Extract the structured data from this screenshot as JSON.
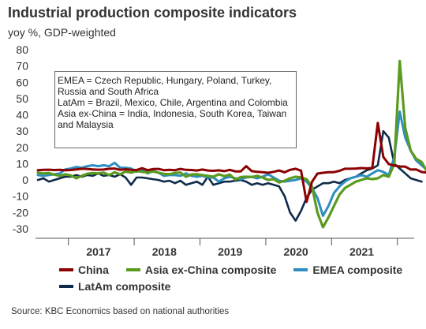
{
  "title": "Industrial production composite indicators",
  "subtitle": "yoy %, GDP-weighted",
  "note_lines": [
    "EMEA = Czech Republic, Hungary, Poland, Turkey, Russia and South Africa",
    "LatAm = Brazil, Mexico, Chile, Argentina and Colombia",
    "Asia ex-China = India, Indonesia, South Korea, Taiwan and Malaysia"
  ],
  "source": "Source: KBC Economics based on national authorities",
  "chart_data": {
    "type": "line",
    "title": "Industrial production composite indicators",
    "subtitle": "yoy %, GDP-weighted",
    "x_unit": "month",
    "x_start": "2016-07",
    "x_tick_labels": [
      "2017",
      "2018",
      "2019",
      "2020",
      "2021"
    ],
    "ylim": [
      -30,
      80
    ],
    "y_ticks": [
      -30,
      -20,
      -10,
      0,
      10,
      20,
      30,
      40,
      50,
      60,
      70,
      80
    ],
    "grid": false,
    "legend_position": "bottom",
    "colors": {
      "China": "#8b0000",
      "Asia ex-China composite": "#5a9a1f",
      "EMEA composite": "#2e8ec0",
      "LatAm composite": "#0f2a4a"
    },
    "series": [
      {
        "name": "China",
        "values": [
          6,
          6.2,
          6.3,
          6.1,
          6.2,
          6,
          6.1,
          6.5,
          6.9,
          6.8,
          6.5,
          6.3,
          6.4,
          6.9,
          7,
          6.2,
          6.6,
          6.2,
          6.1,
          7.2,
          6,
          6.7,
          6.8,
          6,
          6.2,
          6,
          6.8,
          6.2,
          6.1,
          5.8,
          6.4,
          5.8,
          5.6,
          5.9,
          5.4,
          6.2,
          5.3,
          5.3,
          8.5,
          5.4,
          5,
          4.8,
          4.4,
          5,
          5.8,
          4.7,
          6.2,
          6.9,
          5.7,
          -13.5,
          -1.1,
          3.9,
          4.4,
          4.8,
          4.8,
          5.6,
          6.9,
          6.9,
          7,
          7.3,
          7.1,
          7.3,
          35.1,
          14.1,
          9.8,
          8.8,
          8.3,
          8.2,
          6.4,
          6.5,
          4.9,
          4.5,
          4.2
        ]
      },
      {
        "name": "Asia ex-China composite",
        "values": [
          4.5,
          4,
          4.2,
          3.3,
          2.5,
          3.5,
          2.8,
          1,
          2.5,
          3.8,
          4.2,
          4,
          4.5,
          3,
          4.7,
          3.5,
          5.2,
          4.5,
          5.5,
          5,
          4.6,
          5.2,
          4.5,
          3.7,
          3.5,
          4.3,
          4.6,
          2,
          3.4,
          3.5,
          3,
          2.5,
          2,
          3.5,
          2.3,
          3.3,
          0.2,
          1.8,
          2,
          1.8,
          2.5,
          1.5,
          0,
          0.5,
          -1.5,
          -0.5,
          1,
          2,
          1.5,
          0.5,
          -4,
          -20,
          -29,
          -23,
          -16,
          -9,
          -5,
          -3,
          -1,
          0,
          1,
          0.5,
          1,
          3,
          2,
          10,
          73,
          32,
          18,
          13,
          11,
          5,
          4
        ]
      },
      {
        "name": "EMEA composite",
        "values": [
          3,
          2.5,
          3,
          3.5,
          4,
          6.5,
          7,
          8,
          7.5,
          8.5,
          9,
          8.5,
          9,
          8.5,
          10.5,
          7.5,
          7.5,
          7,
          5,
          6.5,
          4,
          5.5,
          4.5,
          2.5,
          3,
          3,
          2.5,
          4,
          2.5,
          2,
          2.5,
          1.5,
          1.5,
          -1,
          1,
          2,
          1,
          0.5,
          1.5,
          2,
          1,
          2,
          3.5,
          1.5,
          -0.5,
          -1,
          -0.5,
          0,
          1,
          -1,
          -5,
          -11,
          -22,
          -16,
          -8,
          -4,
          -1,
          1,
          2,
          3,
          2,
          4,
          6,
          5,
          3,
          14,
          42,
          26,
          18,
          12,
          9,
          6,
          7,
          8
        ]
      },
      {
        "name": "LatAm composite",
        "values": [
          0,
          1,
          -1,
          0,
          1,
          2,
          2,
          3,
          2,
          3,
          2.5,
          4,
          2.5,
          3,
          2,
          3.5,
          1.5,
          -3,
          1.5,
          1.5,
          1,
          0.5,
          0,
          -1,
          -0.5,
          -2,
          -0.5,
          -3,
          -2,
          -1,
          -3,
          2,
          -3,
          -2,
          -1,
          -1,
          -0.5,
          0,
          -1,
          -3,
          -2,
          -3,
          -2,
          -3,
          -4,
          -10,
          -20,
          -25,
          -19,
          -11,
          -6,
          -4,
          -2,
          -2,
          -1,
          -2,
          0,
          1,
          2,
          4,
          6,
          7,
          9,
          30,
          26,
          10,
          7,
          4,
          1,
          0,
          -1
        ]
      }
    ]
  },
  "legend": [
    {
      "name": "China",
      "color": "#8b0000"
    },
    {
      "name": "Asia ex-China composite",
      "color": "#5a9a1f"
    },
    {
      "name": "EMEA composite",
      "color": "#2e8ec0"
    },
    {
      "name": "LatAm composite",
      "color": "#0f2a4a"
    }
  ]
}
